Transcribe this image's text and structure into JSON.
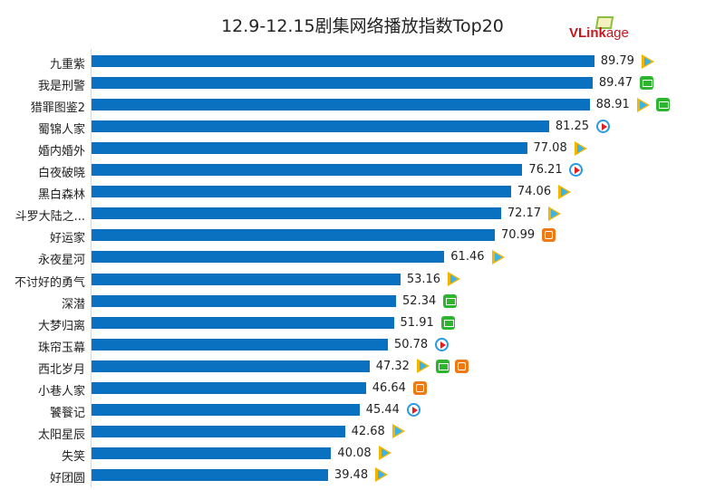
{
  "chart_data": {
    "type": "bar",
    "orientation": "horizontal",
    "title": "12.9-12.15剧集网络播放指数Top20",
    "categories": [
      "九重紫",
      "我是刑警",
      "猎罪图鉴2",
      "蜀锦人家",
      "婚内婚外",
      "白夜破晓",
      "黑白森林",
      "斗罗大陆之...",
      "好运家",
      "永夜星河",
      "不讨好的勇气",
      "深潜",
      "大梦归离",
      "珠帘玉幕",
      "西北岁月",
      "小巷人家",
      "饕餮记",
      "太阳星辰",
      "失笑",
      "好团圆"
    ],
    "values": [
      89.79,
      89.47,
      88.91,
      81.25,
      77.08,
      76.21,
      74.06,
      72.17,
      70.99,
      61.46,
      53.16,
      52.34,
      51.91,
      50.78,
      47.32,
      46.64,
      45.44,
      42.68,
      40.08,
      39.48
    ],
    "platforms": [
      [
        "tencent"
      ],
      [
        "iqiyi"
      ],
      [
        "tencent",
        "iqiyi"
      ],
      [
        "youku"
      ],
      [
        "tencent"
      ],
      [
        "youku"
      ],
      [
        "tencent"
      ],
      [
        "tencent"
      ],
      [
        "mango"
      ],
      [
        "tencent"
      ],
      [
        "tencent"
      ],
      [
        "iqiyi"
      ],
      [
        "iqiyi"
      ],
      [
        "youku"
      ],
      [
        "tencent",
        "iqiyi",
        "mango"
      ],
      [
        "mango"
      ],
      [
        "youku"
      ],
      [
        "tencent"
      ],
      [
        "tencent"
      ],
      [
        "tencent"
      ]
    ],
    "bar_color": "#0a70c0",
    "grid": false,
    "legend": "none"
  },
  "logo": "VLinkage"
}
